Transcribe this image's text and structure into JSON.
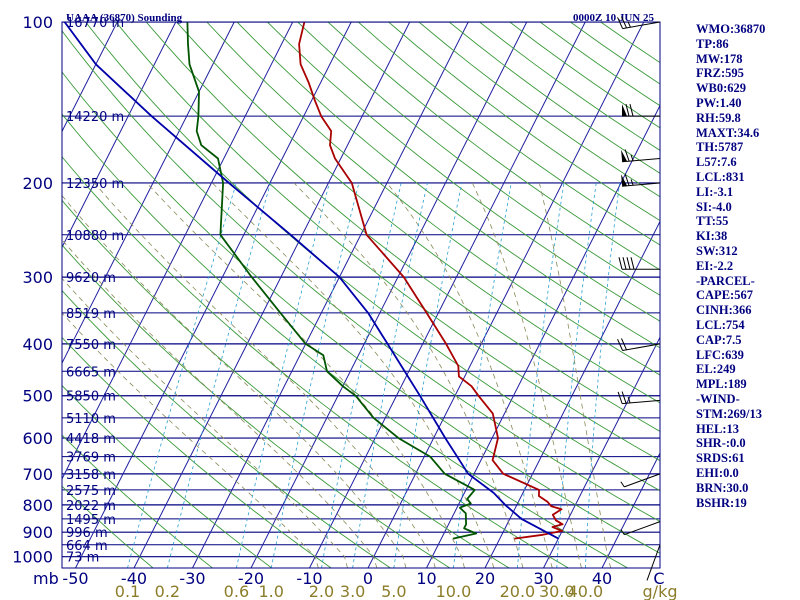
{
  "chart_data": {
    "type": "skew-t sounding",
    "title": "UAAA (36870) Sounding",
    "datetime": "0000Z 10 JUN 25",
    "pressure_levels_hpa": [
      100,
      200,
      300,
      400,
      500,
      600,
      700,
      800,
      900,
      1000
    ],
    "pressure_axis_label": "mb",
    "pressure_range_hpa": [
      100,
      1050
    ],
    "pressure_scale": "log",
    "temperature_ticks_c": [
      -50,
      -40,
      -30,
      -20,
      -10,
      0,
      10,
      20,
      30,
      40
    ],
    "temperature_axis_unit": "C",
    "mixing_ratio_ticks": [
      "0.1",
      "0.2",
      "0.6",
      "1.0",
      "2.0",
      "3.0",
      "5.0",
      "10.0",
      "20.0",
      "30.0",
      "40.0"
    ],
    "mixing_ratio_unit": "g/kg",
    "height_labels": [
      {
        "p": 100,
        "label": "16770 m"
      },
      {
        "p": 150,
        "label": "14220 m"
      },
      {
        "p": 200,
        "label": "12350 m"
      },
      {
        "p": 250,
        "label": "10880 m"
      },
      {
        "p": 300,
        "label": "9620 m"
      },
      {
        "p": 350,
        "label": "8519 m"
      },
      {
        "p": 400,
        "label": "7550 m"
      },
      {
        "p": 450,
        "label": "6665 m"
      },
      {
        "p": 500,
        "label": "5850 m"
      },
      {
        "p": 550,
        "label": "5110 m"
      },
      {
        "p": 600,
        "label": "4418 m"
      },
      {
        "p": 650,
        "label": "3769 m"
      },
      {
        "p": 700,
        "label": "3158 m"
      },
      {
        "p": 750,
        "label": "2575 m"
      },
      {
        "p": 800,
        "label": "2022 m"
      },
      {
        "p": 850,
        "label": "1495 m"
      },
      {
        "p": 900,
        "label": "996 m"
      },
      {
        "p": 950,
        "label": "664 m"
      },
      {
        "p": 1000,
        "label": "73 m"
      }
    ],
    "series": [
      {
        "name": "",
        "color": "#aa0000",
        "points": [
          [
            925,
            22.5
          ],
          [
            910,
            27
          ],
          [
            895,
            30
          ],
          [
            880,
            28
          ],
          [
            870,
            29.5
          ],
          [
            855,
            28
          ],
          [
            835,
            27
          ],
          [
            815,
            28
          ],
          [
            805,
            26
          ],
          [
            790,
            25
          ],
          [
            770,
            23
          ],
          [
            750,
            22.5
          ],
          [
            700,
            15
          ],
          [
            660,
            12
          ],
          [
            600,
            11
          ],
          [
            540,
            8
          ],
          [
            500,
            4
          ],
          [
            480,
            2
          ],
          [
            460,
            -1
          ],
          [
            440,
            -2
          ],
          [
            400,
            -6
          ],
          [
            350,
            -12
          ],
          [
            300,
            -19
          ],
          [
            250,
            -29
          ],
          [
            200,
            -36
          ],
          [
            180,
            -41
          ],
          [
            170,
            -43
          ],
          [
            160,
            -44
          ],
          [
            150,
            -47
          ],
          [
            140,
            -49.5
          ],
          [
            130,
            -52
          ],
          [
            120,
            -55
          ],
          [
            110,
            -57
          ],
          [
            100,
            -58
          ]
        ]
      },
      {
        "name": "",
        "color": "#005500",
        "points": [
          [
            925,
            12
          ],
          [
            905,
            15.5
          ],
          [
            885,
            13
          ],
          [
            870,
            13
          ],
          [
            850,
            12.5
          ],
          [
            830,
            12
          ],
          [
            810,
            10.5
          ],
          [
            795,
            12
          ],
          [
            780,
            11
          ],
          [
            750,
            11.5
          ],
          [
            700,
            5
          ],
          [
            650,
            1
          ],
          [
            600,
            -6
          ],
          [
            550,
            -12
          ],
          [
            500,
            -17
          ],
          [
            480,
            -20
          ],
          [
            450,
            -24
          ],
          [
            420,
            -26
          ],
          [
            400,
            -30
          ],
          [
            350,
            -37
          ],
          [
            300,
            -45
          ],
          [
            250,
            -54
          ],
          [
            200,
            -58
          ],
          [
            180,
            -61
          ],
          [
            170,
            -65
          ],
          [
            160,
            -67
          ],
          [
            150,
            -68
          ],
          [
            135,
            -70
          ],
          [
            120,
            -74
          ],
          [
            110,
            -76
          ],
          [
            100,
            -78
          ]
        ]
      },
      {
        "name": "",
        "color": "#0000aa",
        "points": [
          [
            925,
            30
          ],
          [
            850,
            22
          ],
          [
            800,
            18
          ],
          [
            760,
            15
          ],
          [
            700,
            9
          ],
          [
            600,
            2
          ],
          [
            500,
            -6
          ],
          [
            400,
            -16
          ],
          [
            350,
            -22
          ],
          [
            300,
            -30
          ],
          [
            250,
            -42
          ],
          [
            200,
            -57
          ],
          [
            150,
            -76
          ],
          [
            120,
            -90
          ],
          [
            100,
            -99
          ]
        ]
      }
    ],
    "wind_barbs": [
      {
        "p": 100,
        "dir": 260,
        "speed_kt": 25
      },
      {
        "p": 150,
        "dir": 270,
        "speed_kt": 70
      },
      {
        "p": 180,
        "dir": 265,
        "speed_kt": 65
      },
      {
        "p": 200,
        "dir": 265,
        "speed_kt": 65
      },
      {
        "p": 290,
        "dir": 270,
        "speed_kt": 40
      },
      {
        "p": 400,
        "dir": 260,
        "speed_kt": 20
      },
      {
        "p": 510,
        "dir": 265,
        "speed_kt": 25
      },
      {
        "p": 700,
        "dir": 250,
        "speed_kt": 5
      },
      {
        "p": 860,
        "dir": 250,
        "speed_kt": 5
      },
      {
        "p": 950,
        "dir": 200,
        "speed_kt": 0
      }
    ],
    "grid": true
  },
  "indices": [
    "WMO:36870",
    "TP:86",
    "MW:178",
    "FRZ:595",
    "WB0:629",
    "PW:1.40",
    "RH:59.8",
    "MAXT:34.6",
    "TH:5787",
    "L57:7.6",
    "LCL:831",
    "LI:-3.1",
    "SI:-4.0",
    "TT:55",
    "KI:38",
    "SW:312",
    "EI:-2.2",
    "-PARCEL-",
    "CAPE:567",
    "CINH:366",
    "LCL:754",
    "CAP:7.5",
    "LFC:639",
    "EL:249",
    "MPL:189",
    "-WIND-",
    "STM:269/13",
    "HEL:13",
    "SHR-:0.0",
    "SRDS:61",
    "EHI:0.0",
    "BRN:30.0",
    "BSHR:19"
  ],
  "colors": {
    "background": "#ffffff",
    "frame": "#000080",
    "text": "#000080",
    "isotherm": "#1f1fa0",
    "dry_adiabat": "#3a9a3a",
    "moist_adiabat": "#8a8a5a",
    "mixing_ratio": "#2aa0d0",
    "mixing_ratio_label": "#8b7d2a",
    "temperature": "#aa0000",
    "dewpoint": "#005500",
    "parcel": "#0000aa",
    "wind_barb": "#000000"
  }
}
